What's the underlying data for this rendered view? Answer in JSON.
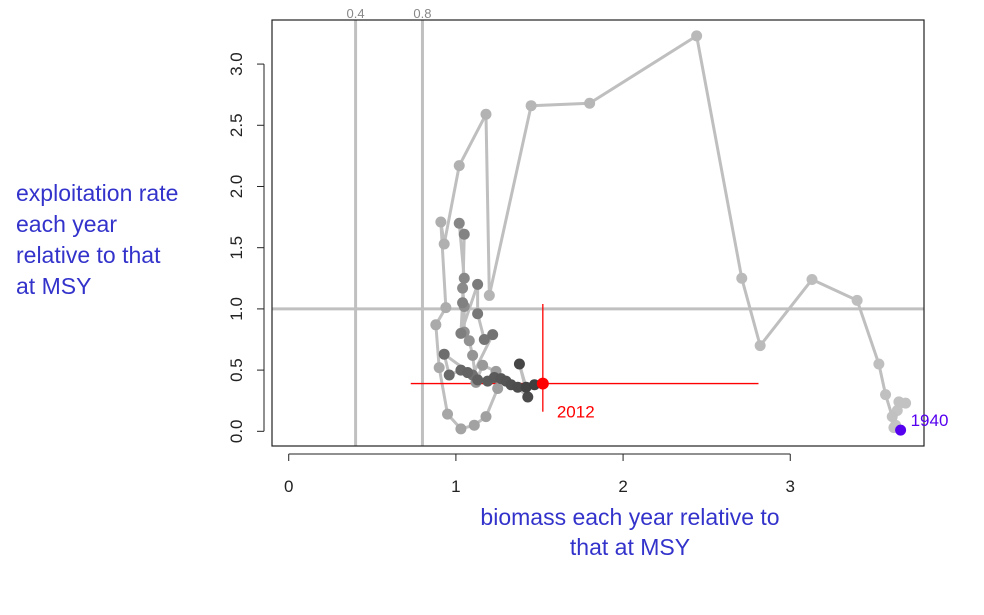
{
  "chart_data": {
    "type": "scatter",
    "title": "",
    "xlabel": [
      "biomass each year relative to",
      "that at MSY"
    ],
    "ylabel": [
      "exploitation rate",
      "each year",
      "relative to that",
      "at MSY"
    ],
    "xlim": [
      -0.1,
      3.8
    ],
    "ylim": [
      -0.12,
      3.36
    ],
    "x_ticks": [
      "0",
      "1",
      "2",
      "3"
    ],
    "y_ticks": [
      "0.0",
      "0.5",
      "1.0",
      "1.5",
      "2.0",
      "2.5",
      "3.0"
    ],
    "reference_lines": {
      "horizontal": [
        1.0
      ],
      "vertical": [
        0.4,
        0.8
      ],
      "vertical_labels": [
        "0.4",
        "0.8"
      ]
    },
    "first_year": {
      "label": "1940",
      "x": 3.66,
      "y": 0.01,
      "color": "#5500ee"
    },
    "last_year": {
      "label": "2012",
      "x": 1.52,
      "y": 0.39,
      "color": "#ff0000",
      "x_interval": [
        0.73,
        2.81
      ],
      "y_interval": [
        0.16,
        1.04
      ]
    },
    "series": [
      {
        "line_color": "#bfbfbf",
        "points": [
          {
            "x": 3.66,
            "y": 0.01
          },
          {
            "x": 3.63,
            "y": 0.05
          },
          {
            "x": 3.62,
            "y": 0.03
          },
          {
            "x": 3.64,
            "y": 0.17
          },
          {
            "x": 3.69,
            "y": 0.23
          },
          {
            "x": 3.65,
            "y": 0.24
          },
          {
            "x": 3.61,
            "y": 0.12
          },
          {
            "x": 3.57,
            "y": 0.3
          },
          {
            "x": 3.53,
            "y": 0.55
          },
          {
            "x": 3.4,
            "y": 1.07
          },
          {
            "x": 3.13,
            "y": 1.24
          },
          {
            "x": 2.82,
            "y": 0.7
          },
          {
            "x": 2.71,
            "y": 1.25
          },
          {
            "x": 2.44,
            "y": 3.23
          },
          {
            "x": 1.8,
            "y": 2.68
          },
          {
            "x": 1.45,
            "y": 2.66
          },
          {
            "x": 1.2,
            "y": 1.11
          },
          {
            "x": 1.18,
            "y": 2.59
          },
          {
            "x": 1.02,
            "y": 2.17
          },
          {
            "x": 0.93,
            "y": 1.53
          },
          {
            "x": 0.91,
            "y": 1.71
          },
          {
            "x": 0.94,
            "y": 1.01
          },
          {
            "x": 0.88,
            "y": 0.87
          },
          {
            "x": 0.9,
            "y": 0.52
          },
          {
            "x": 0.95,
            "y": 0.14
          },
          {
            "x": 1.03,
            "y": 0.02
          },
          {
            "x": 1.11,
            "y": 0.05
          },
          {
            "x": 1.18,
            "y": 0.12
          },
          {
            "x": 1.25,
            "y": 0.35
          },
          {
            "x": 1.24,
            "y": 0.49
          },
          {
            "x": 1.16,
            "y": 0.54
          },
          {
            "x": 1.12,
            "y": 0.4
          },
          {
            "x": 1.1,
            "y": 0.62
          },
          {
            "x": 1.08,
            "y": 0.74
          },
          {
            "x": 1.05,
            "y": 0.81
          },
          {
            "x": 1.05,
            "y": 1.02
          },
          {
            "x": 1.04,
            "y": 1.17
          },
          {
            "x": 1.05,
            "y": 1.25
          },
          {
            "x": 1.02,
            "y": 1.7
          },
          {
            "x": 1.05,
            "y": 1.61
          },
          {
            "x": 1.04,
            "y": 1.05
          },
          {
            "x": 1.03,
            "y": 0.8
          },
          {
            "x": 1.13,
            "y": 1.2
          },
          {
            "x": 1.13,
            "y": 0.96
          },
          {
            "x": 1.17,
            "y": 0.75
          },
          {
            "x": 1.22,
            "y": 0.79
          },
          {
            "x": 1.1,
            "y": 0.46
          },
          {
            "x": 0.93,
            "y": 0.63
          },
          {
            "x": 0.96,
            "y": 0.46
          },
          {
            "x": 1.03,
            "y": 0.5
          },
          {
            "x": 1.07,
            "y": 0.48
          },
          {
            "x": 1.13,
            "y": 0.42
          },
          {
            "x": 1.19,
            "y": 0.41
          },
          {
            "x": 1.23,
            "y": 0.44
          },
          {
            "x": 1.27,
            "y": 0.43
          },
          {
            "x": 1.3,
            "y": 0.41
          },
          {
            "x": 1.33,
            "y": 0.38
          },
          {
            "x": 1.37,
            "y": 0.36
          },
          {
            "x": 1.43,
            "y": 0.28
          },
          {
            "x": 1.38,
            "y": 0.55
          },
          {
            "x": 1.42,
            "y": 0.36
          },
          {
            "x": 1.47,
            "y": 0.38
          },
          {
            "x": 1.52,
            "y": 0.39
          }
        ]
      }
    ]
  }
}
